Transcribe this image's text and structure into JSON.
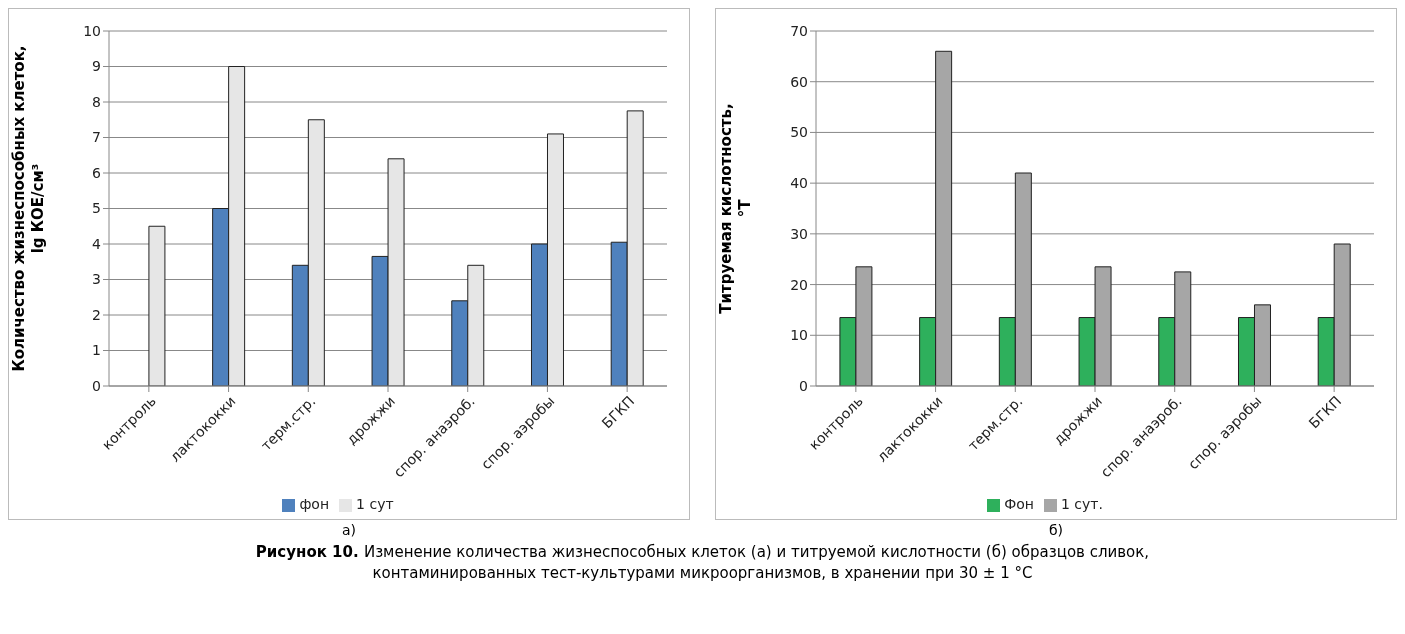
{
  "chart_data": [
    {
      "type": "bar",
      "ylabel": "Количество жизнеспособных клеток, lg КОЕ/см³",
      "categories": [
        "контроль",
        "лактококки",
        "терм.стр.",
        "дрожжи",
        "спор. анаэроб.",
        "спор. аэробы",
        "БГКП"
      ],
      "series": [
        {
          "name": "фон",
          "color": "#4f81bd",
          "values": [
            null,
            5.0,
            3.4,
            3.65,
            2.4,
            4.0,
            4.05
          ]
        },
        {
          "name": "1 сут",
          "color": "#e6e6e6",
          "values": [
            4.5,
            9.0,
            7.5,
            6.4,
            3.4,
            7.1,
            7.75
          ]
        }
      ],
      "ylim": [
        0,
        10
      ],
      "yticks": [
        0,
        1,
        2,
        3,
        4,
        5,
        6,
        7,
        8,
        9,
        10
      ],
      "grid": "y",
      "legend": "bottom",
      "annotations": [
        "а)",
        "Рисунок 10.",
        "Изменение количества жизнеспособных клеток (а) и титруемой кислотности (б) образцов сливок, контаминированных тест-культурами микроорганизмов, в хранении при 30 ± 1 °С"
      ]
    },
    {
      "type": "bar",
      "ylabel": "Титруемая кислотность, °Т",
      "categories": [
        "контроль",
        "лактококки",
        "терм.стр.",
        "дрожжи",
        "спор. анаэроб.",
        "спор. аэробы",
        "БГКП"
      ],
      "series": [
        {
          "name": "Фон",
          "color": "#2eb05c",
          "values": [
            13.5,
            13.5,
            13.5,
            13.5,
            13.5,
            13.5,
            13.5
          ]
        },
        {
          "name": "1 сут.",
          "color": "#a6a6a6",
          "values": [
            23.5,
            66,
            42,
            23.5,
            22.5,
            16,
            28
          ]
        }
      ],
      "ylim": [
        0,
        70
      ],
      "yticks": [
        0,
        10,
        20,
        30,
        40,
        50,
        60,
        70
      ],
      "grid": "y",
      "legend": "bottom",
      "annotations": [
        "б)"
      ]
    }
  ]
}
